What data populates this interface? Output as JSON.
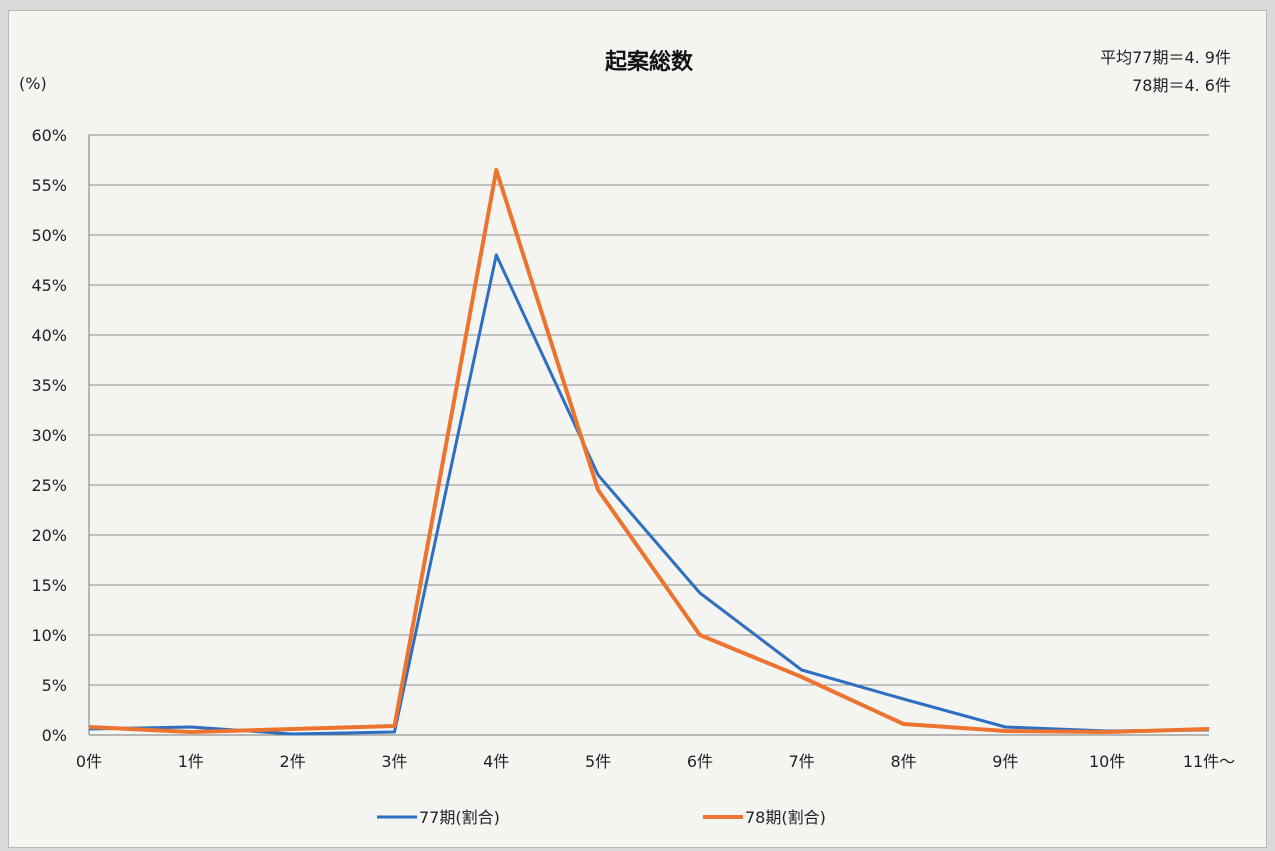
{
  "chart_data": {
    "type": "line",
    "title": "起案総数",
    "unit_label": "(%)",
    "averages": [
      "平均77期＝4. 9件",
      "78期＝4. 6件"
    ],
    "categories": [
      "0件",
      "1件",
      "2件",
      "3件",
      "4件",
      "5件",
      "6件",
      "7件",
      "8件",
      "9件",
      "10件",
      "11件～"
    ],
    "y_ticks": [
      "0%",
      "5%",
      "10%",
      "15%",
      "20%",
      "25%",
      "30%",
      "35%",
      "40%",
      "45%",
      "50%",
      "55%",
      "60%"
    ],
    "ylim": [
      0,
      60
    ],
    "grid": true,
    "legend_position": "bottom",
    "series": [
      {
        "name": "77期(割合)",
        "color": "#2f6fc2",
        "values": [
          0.6,
          0.8,
          0.1,
          0.3,
          48.0,
          26.0,
          14.2,
          6.5,
          3.6,
          0.8,
          0.4,
          0.5
        ]
      },
      {
        "name": "78期(割合)",
        "color": "#ec7430",
        "values": [
          0.8,
          0.3,
          0.6,
          0.9,
          56.5,
          24.5,
          10.0,
          5.8,
          1.1,
          0.4,
          0.3,
          0.6
        ]
      }
    ]
  }
}
